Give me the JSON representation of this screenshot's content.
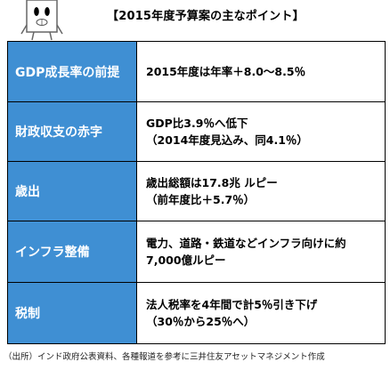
{
  "title": "【2015年度予算案の主なポイント】",
  "rows": [
    {
      "label": "GDP成長率の前提",
      "lines": [
        "2015年度は年率＋8.0～8.5％"
      ]
    },
    {
      "label": "財政収支の赤字",
      "lines": [
        "GDP比3.9％へ低下",
        "（2014年度見込み、同4.1％）"
      ]
    },
    {
      "label": "歳出",
      "lines": [
        "歳出総額は17.8兆 ルピー",
        "（前年度比＋5.7％）"
      ]
    },
    {
      "label": "インフラ整備",
      "lines": [
        "電力、道路・鉄道などインフラ向けに約",
        "7,000億ルピー"
      ]
    },
    {
      "label": "税制",
      "lines": [
        "法人税率を4年間で計5％引き下げ",
        "（30％から25％へ）"
      ]
    }
  ],
  "source": "（出所）インド政府公表資料、各種報道を参考に三井住友アセットマネジメント作成",
  "colors": {
    "label_bg": "#3f8fd3",
    "label_text": "#ffffff"
  },
  "mascot": "character-mascot-icon"
}
